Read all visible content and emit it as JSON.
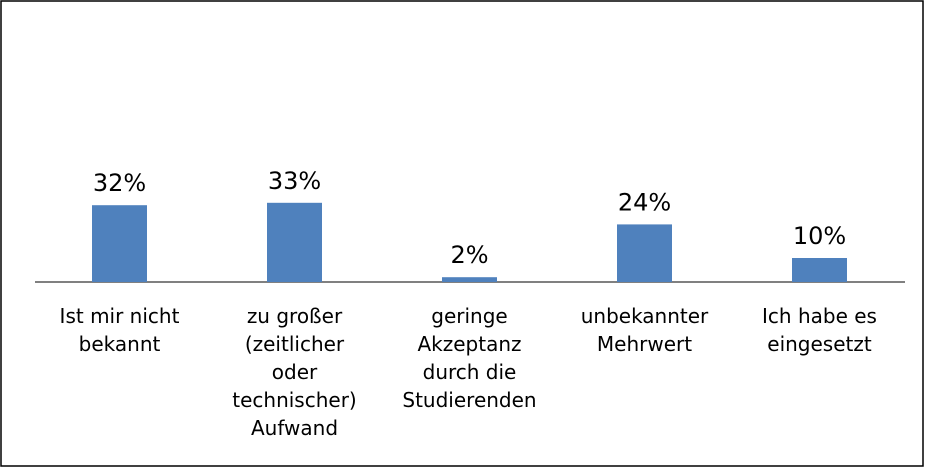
{
  "chart_data": {
    "type": "bar",
    "categories": [
      "Ist mir nicht\nbekannt",
      "zu großer\n(zeitlicher\noder\ntechnischer)\nAufwand",
      "geringe\nAkzeptanz\ndurch die\nStudierenden",
      "unbekannter\nMehrwert",
      "Ich habe es\neingesetzt"
    ],
    "values": [
      32,
      33,
      2,
      24,
      10
    ],
    "value_labels": [
      "32%",
      "33%",
      "2%",
      "24%",
      "10%"
    ],
    "color": "#4f81bd"
  }
}
